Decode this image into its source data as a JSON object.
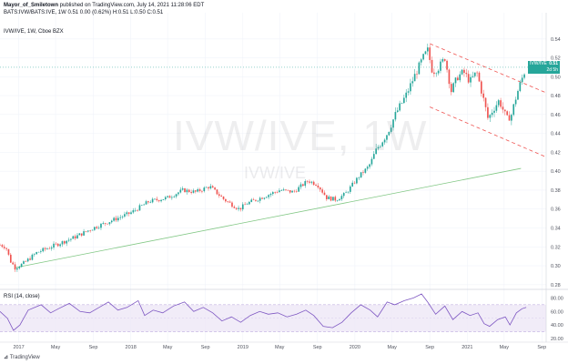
{
  "header": {
    "author": "Mayor_of_Smiletown",
    "published": " published on TradingView.com, July 14, 2021 11:28:06 EDT",
    "quote": "BATS:IVW/BATS:IVE, 1W  0.51 0.00 (0.62%) H:0.51 L:0.50 C:0.51"
  },
  "symbol_label": "IVW/IVE, 1W, Cboe BZX",
  "watermark": "IVW/IVE, 1W",
  "watermark_sub": "IVW/IVE",
  "rsi_label": "RSI (14, close)",
  "logo_text": "TradingView",
  "price_label": {
    "symbol": "IVW/IVE",
    "value": "0.51",
    "countdown": "2d 5h"
  },
  "colors": {
    "up": "#26a69a",
    "down": "#ef5350",
    "trend": "#81c784",
    "channel": "#ef5350",
    "rsi": "#7e57c2",
    "rsi_band": "#ede7f6"
  },
  "chart_data": [
    {
      "type": "candlestick",
      "x_unit": "date (weekly)",
      "xlim": [
        "2016-11-01",
        "2021-09-15"
      ],
      "ylim": [
        0.275,
        0.56
      ],
      "y_ticks": [
        0.28,
        0.3,
        0.32,
        0.34,
        0.36,
        0.38,
        0.4,
        0.42,
        0.44,
        0.46,
        0.48,
        0.5,
        0.52,
        0.54
      ],
      "y_tick_labels": [
        "0.28",
        "0.30",
        "0.32",
        "0.34",
        "0.36",
        "0.38",
        "0.40",
        "0.42",
        "0.44",
        "0.46",
        "0.48",
        "0.50",
        "0.52",
        "0.54"
      ],
      "x_ticks": [
        "2017-01-01",
        "2017-05-01",
        "2017-09-01",
        "2018-01-01",
        "2018-05-01",
        "2018-09-01",
        "2019-01-01",
        "2019-05-01",
        "2019-09-01",
        "2020-01-01",
        "2020-05-01",
        "2020-09-01",
        "2021-01-01",
        "2021-05-01",
        "2021-09-01"
      ],
      "x_tick_labels": [
        "2017",
        "May",
        "Sep",
        "2018",
        "May",
        "Sep",
        "2019",
        "May",
        "Sep",
        "2020",
        "May",
        "Sep",
        "2021",
        "May",
        "Sep"
      ],
      "price_path": [
        [
          "2016-11-01",
          0.322
        ],
        [
          "2016-11-20",
          0.32
        ],
        [
          "2016-12-05",
          0.305
        ],
        [
          "2016-12-20",
          0.298
        ],
        [
          "2017-01-15",
          0.302
        ],
        [
          "2017-03-01",
          0.314
        ],
        [
          "2017-05-01",
          0.322
        ],
        [
          "2017-07-01",
          0.33
        ],
        [
          "2017-09-01",
          0.34
        ],
        [
          "2017-11-01",
          0.348
        ],
        [
          "2018-01-01",
          0.356
        ],
        [
          "2018-03-01",
          0.368
        ],
        [
          "2018-05-01",
          0.372
        ],
        [
          "2018-06-20",
          0.38
        ],
        [
          "2018-08-01",
          0.378
        ],
        [
          "2018-09-15",
          0.384
        ],
        [
          "2018-11-01",
          0.37
        ],
        [
          "2018-12-20",
          0.36
        ],
        [
          "2019-01-15",
          0.366
        ],
        [
          "2019-03-01",
          0.372
        ],
        [
          "2019-05-01",
          0.38
        ],
        [
          "2019-06-15",
          0.378
        ],
        [
          "2019-08-01",
          0.39
        ],
        [
          "2019-09-01",
          0.386
        ],
        [
          "2019-10-01",
          0.372
        ],
        [
          "2019-11-01",
          0.37
        ],
        [
          "2019-12-01",
          0.376
        ],
        [
          "2020-01-15",
          0.395
        ],
        [
          "2020-02-15",
          0.405
        ],
        [
          "2020-03-15",
          0.425
        ],
        [
          "2020-04-15",
          0.44
        ],
        [
          "2020-05-15",
          0.462
        ],
        [
          "2020-06-15",
          0.48
        ],
        [
          "2020-07-15",
          0.502
        ],
        [
          "2020-08-10",
          0.52
        ],
        [
          "2020-08-25",
          0.528
        ],
        [
          "2020-09-10",
          0.505
        ],
        [
          "2020-10-01",
          0.51
        ],
        [
          "2020-10-20",
          0.52
        ],
        [
          "2020-11-10",
          0.485
        ],
        [
          "2020-12-01",
          0.5
        ],
        [
          "2020-12-20",
          0.505
        ],
        [
          "2021-01-10",
          0.495
        ],
        [
          "2021-02-01",
          0.505
        ],
        [
          "2021-02-20",
          0.48
        ],
        [
          "2021-03-10",
          0.455
        ],
        [
          "2021-03-25",
          0.465
        ],
        [
          "2021-04-15",
          0.475
        ],
        [
          "2021-05-10",
          0.455
        ],
        [
          "2021-05-25",
          0.46
        ],
        [
          "2021-06-10",
          0.48
        ],
        [
          "2021-06-25",
          0.495
        ],
        [
          "2021-07-12",
          0.51
        ]
      ],
      "last_price": 0.51,
      "trendline": {
        "from": [
          "2016-12-20",
          0.298
        ],
        "to": [
          "2021-06-25",
          0.403
        ]
      },
      "channel_upper": {
        "from": [
          "2020-09-01",
          0.535
        ],
        "to": [
          "2021-09-15",
          0.483
        ]
      },
      "channel_lower": {
        "from": [
          "2020-09-01",
          0.468
        ],
        "to": [
          "2021-09-15",
          0.415
        ]
      }
    },
    {
      "type": "line",
      "name": "RSI (14, close)",
      "ylim": [
        20,
        90
      ],
      "y_ticks": [
        20,
        40,
        60,
        80
      ],
      "y_tick_labels": [
        "20.00",
        "40.00",
        "60.00",
        "80.00"
      ],
      "band": [
        30,
        70
      ],
      "rsi_path": [
        [
          "2016-11-01",
          60
        ],
        [
          "2016-11-25",
          50
        ],
        [
          "2016-12-15",
          32
        ],
        [
          "2017-01-05",
          40
        ],
        [
          "2017-02-01",
          62
        ],
        [
          "2017-03-15",
          70
        ],
        [
          "2017-04-15",
          58
        ],
        [
          "2017-05-10",
          64
        ],
        [
          "2017-06-15",
          72
        ],
        [
          "2017-07-20",
          60
        ],
        [
          "2017-08-20",
          58
        ],
        [
          "2017-09-20",
          66
        ],
        [
          "2017-10-20",
          74
        ],
        [
          "2017-11-20",
          62
        ],
        [
          "2017-12-20",
          66
        ],
        [
          "2018-01-25",
          76
        ],
        [
          "2018-02-15",
          54
        ],
        [
          "2018-03-15",
          62
        ],
        [
          "2018-04-15",
          58
        ],
        [
          "2018-05-20",
          68
        ],
        [
          "2018-06-25",
          74
        ],
        [
          "2018-07-25",
          60
        ],
        [
          "2018-08-25",
          66
        ],
        [
          "2018-09-25",
          58
        ],
        [
          "2018-10-25",
          46
        ],
        [
          "2018-11-25",
          52
        ],
        [
          "2018-12-25",
          44
        ],
        [
          "2019-01-25",
          54
        ],
        [
          "2019-02-25",
          60
        ],
        [
          "2019-03-25",
          56
        ],
        [
          "2019-04-25",
          58
        ],
        [
          "2019-05-25",
          52
        ],
        [
          "2019-06-25",
          56
        ],
        [
          "2019-07-25",
          62
        ],
        [
          "2019-08-20",
          54
        ],
        [
          "2019-09-20",
          38
        ],
        [
          "2019-10-20",
          36
        ],
        [
          "2019-11-20",
          44
        ],
        [
          "2019-12-20",
          58
        ],
        [
          "2020-01-20",
          70
        ],
        [
          "2020-02-20",
          62
        ],
        [
          "2020-03-15",
          52
        ],
        [
          "2020-04-15",
          74
        ],
        [
          "2020-05-10",
          70
        ],
        [
          "2020-06-10",
          76
        ],
        [
          "2020-07-10",
          80
        ],
        [
          "2020-08-05",
          86
        ],
        [
          "2020-08-25",
          74
        ],
        [
          "2020-09-20",
          56
        ],
        [
          "2020-10-20",
          68
        ],
        [
          "2020-11-15",
          48
        ],
        [
          "2020-12-15",
          60
        ],
        [
          "2021-01-10",
          54
        ],
        [
          "2021-02-05",
          58
        ],
        [
          "2021-02-25",
          42
        ],
        [
          "2021-03-15",
          38
        ],
        [
          "2021-04-10",
          48
        ],
        [
          "2021-05-05",
          52
        ],
        [
          "2021-05-20",
          40
        ],
        [
          "2021-06-10",
          58
        ],
        [
          "2021-06-28",
          64
        ],
        [
          "2021-07-12",
          66
        ]
      ]
    }
  ]
}
